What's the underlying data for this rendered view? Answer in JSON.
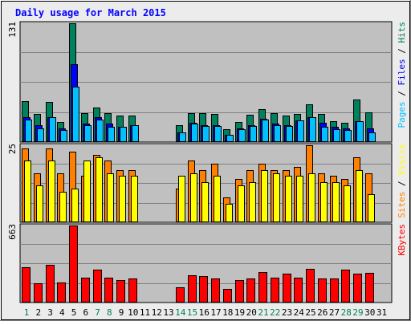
{
  "chart_data": {
    "type": "bar",
    "title": "Daily usage for March 2015",
    "colors": {
      "outer_background": "#ececec",
      "plot_background": "#c0c0c0",
      "grid": "#808080",
      "title": "#0000ff",
      "hits": "#00805c",
      "files": "#0000ff",
      "pages": "#00c0ff",
      "visits": "#ff8000",
      "sites": "#ffff00",
      "kbytes": "#ff0000",
      "weekend_label": "#00805c",
      "weekday_label": "#000000"
    },
    "x": {
      "labels": [
        "1",
        "2",
        "3",
        "4",
        "5",
        "6",
        "7",
        "8",
        "9",
        "10",
        "11",
        "12",
        "13",
        "14",
        "15",
        "16",
        "17",
        "18",
        "19",
        "20",
        "21",
        "22",
        "23",
        "24",
        "25",
        "26",
        "27",
        "28",
        "29",
        "30",
        "31"
      ],
      "weekend": [
        1,
        7,
        8,
        14,
        15,
        21,
        22,
        28,
        29
      ]
    },
    "panels": [
      {
        "id": "hits_files_pages",
        "ymax_label": "131",
        "ymax": 131,
        "legend": [
          {
            "text": "Pages",
            "color": "#00c0ff"
          },
          {
            "text": " / ",
            "color": "#000000"
          },
          {
            "text": "Files",
            "color": "#0000ff"
          },
          {
            "text": " / ",
            "color": "#000000"
          },
          {
            "text": "Hits",
            "color": "#00805c"
          }
        ],
        "series": [
          {
            "name": "Hits",
            "values": [
              45,
              31,
              44,
              22,
              131,
              32,
              38,
              32,
              29,
              29,
              0,
              0,
              0,
              19,
              32,
              32,
              31,
              14,
              22,
              30,
              36,
              32,
              29,
              31,
              42,
              31,
              23,
              21,
              47,
              33,
              0
            ]
          },
          {
            "name": "Files",
            "values": [
              27,
              19,
              27,
              15,
              86,
              20,
              27,
              20,
              17,
              19,
              0,
              0,
              0,
              11,
              21,
              19,
              19,
              8,
              15,
              19,
              26,
              20,
              19,
              24,
              27,
              21,
              17,
              15,
              23,
              15,
              0
            ]
          },
          {
            "name": "Pages",
            "values": [
              25,
              15,
              27,
              13,
              61,
              19,
              25,
              17,
              17,
              19,
              0,
              0,
              0,
              11,
              20,
              18,
              18,
              8,
              14,
              18,
              25,
              19,
              18,
              24,
              27,
              17,
              14,
              13,
              23,
              11,
              0
            ]
          }
        ]
      },
      {
        "id": "visits_sites",
        "ymax_label": "25",
        "ymax": 25,
        "legend": [
          {
            "text": "Sites",
            "color": "#ff8000"
          },
          {
            "text": " / ",
            "color": "#000000"
          },
          {
            "text": "Visits",
            "color": "#ffff00"
          }
        ],
        "series": [
          {
            "name": "Visits",
            "values": [
              24,
              16,
              24,
              16,
              23,
              15,
              22,
              20,
              17,
              17,
              0,
              0,
              0,
              11,
              20,
              17,
              19,
              8,
              14,
              17,
              19,
              17,
              17,
              18,
              25,
              16,
              15,
              14,
              21,
              16,
              0
            ]
          },
          {
            "name": "Sites",
            "values": [
              20,
              12,
              20,
              10,
              11,
              20,
              21,
              16,
              15,
              15,
              0,
              0,
              0,
              15,
              16,
              13,
              15,
              6,
              12,
              13,
              17,
              16,
              15,
              15,
              16,
              13,
              13,
              12,
              17,
              9,
              0
            ]
          }
        ]
      },
      {
        "id": "kbytes",
        "ymax_label": "663",
        "ymax": 663,
        "legend": [
          {
            "text": "KBytes",
            "color": "#ff0000"
          }
        ],
        "series": [
          {
            "name": "KBytes",
            "values": [
              302,
              168,
              328,
              174,
              663,
              213,
              281,
              215,
              194,
              206,
              0,
              0,
              0,
              130,
              233,
              227,
              207,
              116,
              193,
              209,
              262,
              216,
              246,
              213,
              290,
              207,
              205,
              281,
              249,
              253,
              0
            ]
          }
        ]
      }
    ]
  }
}
